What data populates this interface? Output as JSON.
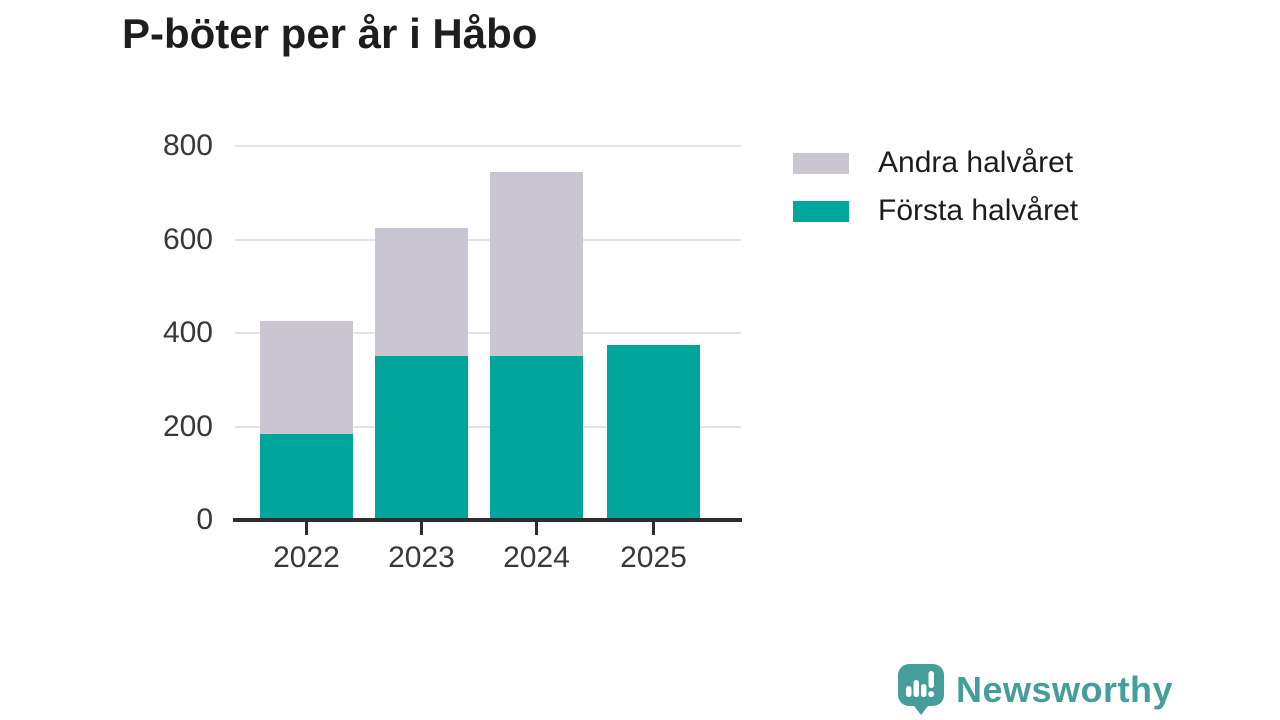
{
  "title": "P-böter per år i Håbo",
  "chart_data": {
    "type": "bar",
    "stacked": true,
    "title": "P-böter per år i Håbo",
    "categories": [
      "2022",
      "2023",
      "2024",
      "2025"
    ],
    "series": [
      {
        "name": "Första halvåret",
        "color": "#00a69c",
        "values": [
          185,
          350,
          350,
          375
        ]
      },
      {
        "name": "Andra halvåret",
        "color": "#c9c6d1",
        "values": [
          240,
          275,
          395,
          0
        ]
      }
    ],
    "totals": [
      425,
      625,
      745,
      375
    ],
    "xlabel": "",
    "ylabel": "",
    "ylim": [
      0,
      800
    ],
    "yticks": [
      0,
      200,
      400,
      600,
      800
    ],
    "grid": true,
    "legend_position": "right-top",
    "legend_order": [
      "Andra halvåret",
      "Första halvåret"
    ]
  },
  "colors": {
    "first_half": "#00a69c",
    "second_half": "#c9c6d1",
    "gridline": "#e4e3e6",
    "axis": "#2d2d2d",
    "axis_text": "#383838",
    "title_text": "#1d1d1b",
    "brand": "#459e9b"
  },
  "branding": {
    "logo_text": "Newsworthy",
    "logo_icon": "speech-bubble-bar-chart-icon"
  }
}
